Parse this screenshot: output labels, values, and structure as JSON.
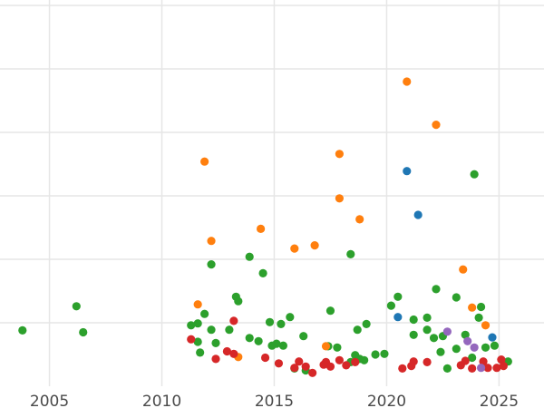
{
  "chart_data": {
    "type": "scatter",
    "title": "",
    "xlabel": "",
    "ylabel": "",
    "xlim": [
      2002.8,
      2027.0
    ],
    "ylim": [
      0,
      60
    ],
    "x_ticks": [
      2005,
      2010,
      2015,
      2020,
      2025
    ],
    "x_tick_labels": [
      "2005",
      "2010",
      "2015",
      "2020",
      "2025"
    ],
    "y_gridlines": [
      10,
      20,
      30,
      40,
      50,
      60
    ],
    "y_tick_labels_visible": false,
    "grid": true,
    "legend": "none",
    "series": [
      {
        "color": "#2ca02c",
        "points": [
          [
            2003.8,
            8.8
          ],
          [
            2006.2,
            12.6
          ],
          [
            2006.5,
            8.5
          ],
          [
            2011.3,
            9.6
          ],
          [
            2011.6,
            9.9
          ],
          [
            2011.6,
            7.0
          ],
          [
            2011.7,
            5.3
          ],
          [
            2011.9,
            11.4
          ],
          [
            2012.2,
            8.9
          ],
          [
            2012.2,
            19.2
          ],
          [
            2012.4,
            6.8
          ],
          [
            2013.0,
            8.9
          ],
          [
            2013.3,
            14.1
          ],
          [
            2013.4,
            13.4
          ],
          [
            2013.9,
            20.4
          ],
          [
            2013.9,
            7.6
          ],
          [
            2014.3,
            7.1
          ],
          [
            2014.5,
            17.8
          ],
          [
            2014.8,
            10.1
          ],
          [
            2014.9,
            6.4
          ],
          [
            2015.1,
            6.7
          ],
          [
            2015.3,
            9.8
          ],
          [
            2015.4,
            6.4
          ],
          [
            2015.7,
            10.9
          ],
          [
            2015.9,
            2.8
          ],
          [
            2016.3,
            7.9
          ],
          [
            2016.4,
            2.5
          ],
          [
            2017.4,
            6.3
          ],
          [
            2017.5,
            11.9
          ],
          [
            2017.8,
            6.1
          ],
          [
            2018.4,
            20.8
          ],
          [
            2018.4,
            3.8
          ],
          [
            2018.6,
            4.9
          ],
          [
            2018.7,
            8.9
          ],
          [
            2018.8,
            4.3
          ],
          [
            2019.0,
            4.1
          ],
          [
            2019.1,
            9.8
          ],
          [
            2019.5,
            5.0
          ],
          [
            2019.9,
            5.1
          ],
          [
            2020.2,
            12.7
          ],
          [
            2020.5,
            14.1
          ],
          [
            2021.2,
            10.5
          ],
          [
            2021.2,
            8.1
          ],
          [
            2021.8,
            10.8
          ],
          [
            2021.8,
            8.9
          ],
          [
            2022.1,
            7.6
          ],
          [
            2022.2,
            15.3
          ],
          [
            2022.4,
            5.4
          ],
          [
            2022.5,
            7.9
          ],
          [
            2022.7,
            2.8
          ],
          [
            2023.1,
            5.9
          ],
          [
            2023.1,
            14.0
          ],
          [
            2023.5,
            8.1
          ],
          [
            2023.8,
            4.5
          ],
          [
            2023.9,
            33.4
          ],
          [
            2024.1,
            10.8
          ],
          [
            2024.2,
            12.5
          ],
          [
            2024.4,
            6.1
          ],
          [
            2024.8,
            6.4
          ],
          [
            2025.4,
            3.9
          ]
        ]
      },
      {
        "color": "#ff7f0e",
        "points": [
          [
            2011.9,
            35.4
          ],
          [
            2012.2,
            22.9
          ],
          [
            2011.6,
            12.9
          ],
          [
            2013.4,
            4.6
          ],
          [
            2014.4,
            24.8
          ],
          [
            2015.9,
            21.7
          ],
          [
            2016.8,
            22.2
          ],
          [
            2017.3,
            6.3
          ],
          [
            2017.9,
            36.6
          ],
          [
            2017.9,
            29.6
          ],
          [
            2018.8,
            26.3
          ],
          [
            2020.9,
            48.0
          ],
          [
            2022.2,
            41.2
          ],
          [
            2023.4,
            18.4
          ],
          [
            2023.8,
            12.4
          ],
          [
            2024.4,
            9.6
          ]
        ]
      },
      {
        "color": "#1f77b4",
        "points": [
          [
            2020.5,
            10.9
          ],
          [
            2020.9,
            33.9
          ],
          [
            2021.4,
            27.0
          ],
          [
            2024.7,
            7.7
          ]
        ]
      },
      {
        "color": "#d62728",
        "points": [
          [
            2011.3,
            7.4
          ],
          [
            2012.4,
            4.3
          ],
          [
            2012.9,
            5.5
          ],
          [
            2013.2,
            10.3
          ],
          [
            2013.2,
            5.1
          ],
          [
            2014.6,
            4.5
          ],
          [
            2015.2,
            3.6
          ],
          [
            2015.9,
            2.9
          ],
          [
            2016.1,
            3.9
          ],
          [
            2016.4,
            3.1
          ],
          [
            2016.7,
            2.1
          ],
          [
            2017.2,
            3.4
          ],
          [
            2017.5,
            3.1
          ],
          [
            2017.3,
            3.8
          ],
          [
            2017.9,
            4.1
          ],
          [
            2018.2,
            3.3
          ],
          [
            2018.6,
            3.8
          ],
          [
            2020.7,
            2.8
          ],
          [
            2021.1,
            3.2
          ],
          [
            2021.2,
            3.9
          ],
          [
            2021.8,
            3.8
          ],
          [
            2023.3,
            3.3
          ],
          [
            2023.5,
            4.0
          ],
          [
            2023.8,
            2.8
          ],
          [
            2024.3,
            3.9
          ],
          [
            2024.5,
            2.9
          ],
          [
            2024.9,
            2.9
          ],
          [
            2025.1,
            4.2
          ],
          [
            2025.2,
            3.2
          ]
        ]
      },
      {
        "color": "#9467bd",
        "points": [
          [
            2022.7,
            8.6
          ],
          [
            2023.6,
            7.1
          ],
          [
            2023.9,
            6.1
          ],
          [
            2024.2,
            2.9
          ]
        ]
      }
    ]
  }
}
